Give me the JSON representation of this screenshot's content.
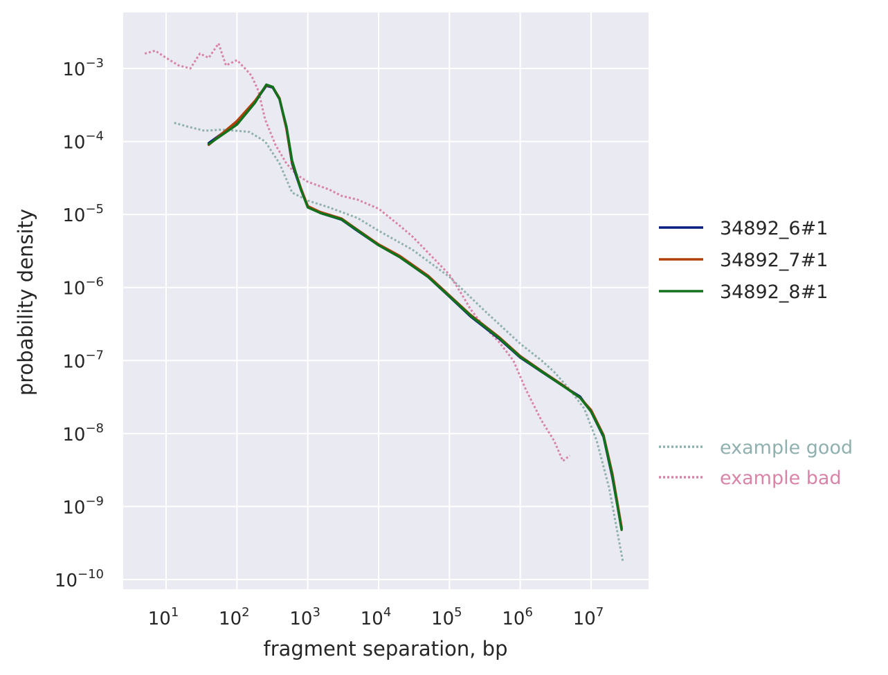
{
  "chart_data": {
    "type": "line",
    "title": "",
    "xlabel": "fragment separation, bp",
    "ylabel": "probability density",
    "xscale": "log",
    "yscale": "log",
    "xlim": [
      2.5,
      60000000
    ],
    "ylim": [
      6e-11,
      0.006
    ],
    "grid": true,
    "background": "#eaeaf2",
    "grid_color": "#ffffff",
    "x_ticks": [
      {
        "value": 10,
        "base": "10",
        "exp": "1"
      },
      {
        "value": 100,
        "base": "10",
        "exp": "2"
      },
      {
        "value": 1000,
        "base": "10",
        "exp": "3"
      },
      {
        "value": 10000,
        "base": "10",
        "exp": "4"
      },
      {
        "value": 100000,
        "base": "10",
        "exp": "5"
      },
      {
        "value": 1000000,
        "base": "10",
        "exp": "6"
      },
      {
        "value": 10000000,
        "base": "10",
        "exp": "7"
      }
    ],
    "y_ticks": [
      {
        "value": 1e-10,
        "base": "10",
        "exp": "−10"
      },
      {
        "value": 1e-09,
        "base": "10",
        "exp": "−9"
      },
      {
        "value": 1e-08,
        "base": "10",
        "exp": "−8"
      },
      {
        "value": 1e-07,
        "base": "10",
        "exp": "−7"
      },
      {
        "value": 1e-06,
        "base": "10",
        "exp": "−6"
      },
      {
        "value": 1e-05,
        "base": "10",
        "exp": "−5"
      },
      {
        "value": 0.0001,
        "base": "10",
        "exp": "−4"
      },
      {
        "value": 0.001,
        "base": "10",
        "exp": "−3"
      }
    ],
    "legend_position": "right",
    "series": [
      {
        "name": "34892_6#1",
        "color": "#001c7f",
        "style": "solid",
        "points": [
          [
            40,
            9.5e-05
          ],
          [
            100,
            0.00018
          ],
          [
            180,
            0.00035
          ],
          [
            260,
            0.00058
          ],
          [
            320,
            0.00055
          ],
          [
            400,
            0.00038
          ],
          [
            500,
            0.00015
          ],
          [
            600,
            5e-05
          ],
          [
            800,
            2.2e-05
          ],
          [
            1000,
            1.3e-05
          ],
          [
            1500,
            1.05e-05
          ],
          [
            3000,
            8.5e-06
          ],
          [
            5000,
            6e-06
          ],
          [
            10000,
            3.8e-06
          ],
          [
            20000,
            2.6e-06
          ],
          [
            50000,
            1.4e-06
          ],
          [
            100000,
            7.5e-07
          ],
          [
            200000,
            4e-07
          ],
          [
            500000,
            2e-07
          ],
          [
            1000000,
            1.1e-07
          ],
          [
            2000000,
            7e-08
          ],
          [
            4000000,
            4.5e-08
          ],
          [
            7000000,
            3.2e-08
          ],
          [
            10000000,
            2e-08
          ],
          [
            15000000,
            9e-09
          ],
          [
            20000000,
            2.5e-09
          ],
          [
            27000000,
            5e-10
          ]
        ]
      },
      {
        "name": "34892_7#1",
        "color": "#b1400d",
        "style": "solid",
        "points": [
          [
            40,
            9e-05
          ],
          [
            100,
            0.00019
          ],
          [
            180,
            0.00036
          ],
          [
            260,
            0.00059
          ],
          [
            320,
            0.00056
          ],
          [
            400,
            0.00039
          ],
          [
            500,
            0.00015
          ],
          [
            600,
            5.2e-05
          ],
          [
            800,
            2.3e-05
          ],
          [
            1000,
            1.3e-05
          ],
          [
            1500,
            1.08e-05
          ],
          [
            3000,
            8.8e-06
          ],
          [
            5000,
            6.2e-06
          ],
          [
            10000,
            3.9e-06
          ],
          [
            20000,
            2.7e-06
          ],
          [
            50000,
            1.45e-06
          ],
          [
            100000,
            7.8e-07
          ],
          [
            200000,
            4.2e-07
          ],
          [
            500000,
            2.1e-07
          ],
          [
            1000000,
            1.15e-07
          ],
          [
            2000000,
            7.2e-08
          ],
          [
            4000000,
            4.6e-08
          ],
          [
            7000000,
            3.1e-08
          ],
          [
            10000000,
            2.1e-08
          ],
          [
            15000000,
            9.5e-09
          ],
          [
            20000000,
            2.8e-09
          ],
          [
            27000000,
            5.2e-10
          ]
        ]
      },
      {
        "name": "34892_8#1",
        "color": "#12711c",
        "style": "solid",
        "points": [
          [
            40,
            9.2e-05
          ],
          [
            100,
            0.00017
          ],
          [
            180,
            0.00034
          ],
          [
            260,
            0.0006
          ],
          [
            320,
            0.00056
          ],
          [
            400,
            0.00038
          ],
          [
            500,
            0.00016
          ],
          [
            600,
            5.5e-05
          ],
          [
            800,
            2.2e-05
          ],
          [
            1000,
            1.25e-05
          ],
          [
            1500,
            1.05e-05
          ],
          [
            3000,
            8.6e-06
          ],
          [
            5000,
            6.1e-06
          ],
          [
            10000,
            3.8e-06
          ],
          [
            20000,
            2.6e-06
          ],
          [
            50000,
            1.4e-06
          ],
          [
            100000,
            7.6e-07
          ],
          [
            200000,
            4.1e-07
          ],
          [
            500000,
            2.05e-07
          ],
          [
            1000000,
            1.12e-07
          ],
          [
            2000000,
            7.1e-08
          ],
          [
            4000000,
            4.5e-08
          ],
          [
            7000000,
            3.1e-08
          ],
          [
            10000000,
            2e-08
          ],
          [
            15000000,
            9.2e-09
          ],
          [
            20000000,
            2.6e-09
          ],
          [
            27000000,
            4.8e-10
          ]
        ]
      },
      {
        "name": "example good",
        "color": "#8fb0ae",
        "style": "dotted",
        "points": [
          [
            13,
            0.00018
          ],
          [
            20,
            0.00016
          ],
          [
            35,
            0.00014
          ],
          [
            60,
            0.000145
          ],
          [
            100,
            0.00014
          ],
          [
            150,
            0.000135
          ],
          [
            250,
            0.0001
          ],
          [
            400,
            5e-05
          ],
          [
            600,
            2e-05
          ],
          [
            1000,
            1.55e-05
          ],
          [
            2000,
            1.25e-05
          ],
          [
            5000,
            9e-06
          ],
          [
            10000,
            6e-06
          ],
          [
            30000,
            3.3e-06
          ],
          [
            100000,
            1.4e-06
          ],
          [
            300000,
            5e-07
          ],
          [
            1000000,
            1.7e-07
          ],
          [
            2000000,
            1e-07
          ],
          [
            3000000,
            7e-08
          ],
          [
            5000000,
            4e-08
          ],
          [
            8000000,
            2.2e-08
          ],
          [
            12000000,
            8e-09
          ],
          [
            18000000,
            1.8e-09
          ],
          [
            28000000,
            1.8e-10
          ]
        ]
      },
      {
        "name": "example bad",
        "color": "#d884a8",
        "style": "dotted",
        "points": [
          [
            5,
            0.0016
          ],
          [
            7,
            0.00175
          ],
          [
            10,
            0.0014
          ],
          [
            15,
            0.0011
          ],
          [
            22,
            0.001
          ],
          [
            30,
            0.0016
          ],
          [
            40,
            0.0014
          ],
          [
            55,
            0.0022
          ],
          [
            70,
            0.0011
          ],
          [
            100,
            0.0013
          ],
          [
            130,
            0.001
          ],
          [
            160,
            0.0008
          ],
          [
            200,
            0.0005
          ],
          [
            250,
            0.0002
          ],
          [
            350,
            9e-05
          ],
          [
            500,
            5e-05
          ],
          [
            700,
            3.5e-05
          ],
          [
            1000,
            2.8e-05
          ],
          [
            2000,
            2.2e-05
          ],
          [
            3000,
            1.8e-05
          ],
          [
            5000,
            1.6e-05
          ],
          [
            10000,
            1.2e-05
          ],
          [
            20000,
            7e-06
          ],
          [
            30000,
            5e-06
          ],
          [
            50000,
            3e-06
          ],
          [
            100000,
            1.5e-06
          ],
          [
            150000,
            8e-07
          ],
          [
            200000,
            5e-07
          ],
          [
            300000,
            3e-07
          ],
          [
            500000,
            1.8e-07
          ],
          [
            800000,
            1e-07
          ],
          [
            1200000,
            4e-08
          ],
          [
            2000000,
            1.5e-08
          ],
          [
            3000000,
            8e-09
          ],
          [
            4000000,
            4.2e-09
          ],
          [
            5000000,
            5e-09
          ]
        ]
      }
    ]
  }
}
